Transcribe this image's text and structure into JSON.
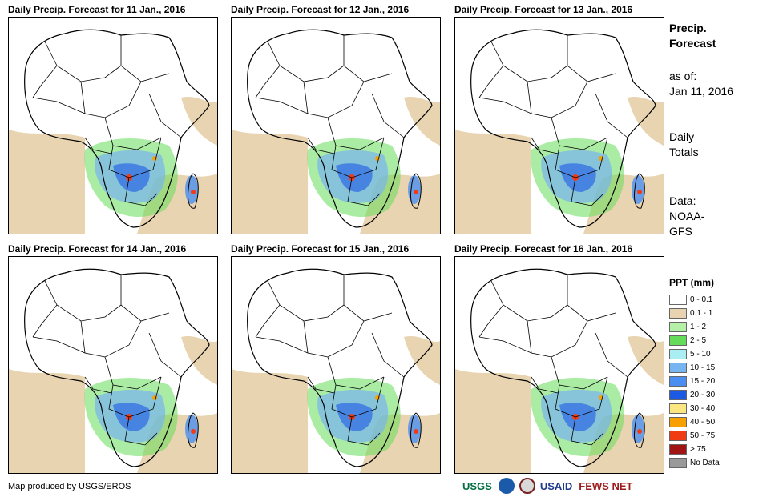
{
  "panels": [
    {
      "title": "Daily Precip. Forecast for 11 Jan., 2016"
    },
    {
      "title": "Daily Precip. Forecast for 12 Jan., 2016"
    },
    {
      "title": "Daily Precip. Forecast for 13 Jan., 2016"
    },
    {
      "title": "Daily Precip. Forecast for 14 Jan., 2016"
    },
    {
      "title": "Daily Precip. Forecast for 15 Jan., 2016"
    },
    {
      "title": "Daily Precip. Forecast for 16 Jan., 2016"
    }
  ],
  "side": {
    "title_line1": "Precip.",
    "title_line2": "Forecast",
    "asof_label": "as of:",
    "asof_date": "Jan 11, 2016",
    "totals_line1": "Daily",
    "totals_line2": "Totals",
    "data_line1": "Data:",
    "data_line2": "NOAA-",
    "data_line3": "GFS"
  },
  "legend": {
    "title": "PPT (mm)",
    "items": [
      {
        "label": "0 - 0.1",
        "color": "#ffffff"
      },
      {
        "label": "0.1 - 1",
        "color": "#e8d4b0"
      },
      {
        "label": "1 - 2",
        "color": "#b4f0a8"
      },
      {
        "label": "2 - 5",
        "color": "#64dc5a"
      },
      {
        "label": "5 - 10",
        "color": "#aaeef4"
      },
      {
        "label": "10 - 15",
        "color": "#78b4f0"
      },
      {
        "label": "15 - 20",
        "color": "#4a8ef0"
      },
      {
        "label": "20 - 30",
        "color": "#1c5ae6"
      },
      {
        "label": "30 - 40",
        "color": "#fce682"
      },
      {
        "label": "40 - 50",
        "color": "#f8a000"
      },
      {
        "label": "50 - 75",
        "color": "#f03c14"
      },
      {
        "label": "> 75",
        "color": "#a01414"
      },
      {
        "label": "No Data",
        "color": "#9a9a9a"
      }
    ]
  },
  "credit": "Map produced by USGS/EROS",
  "logos": {
    "usgs": "USGS",
    "usaid": "USAID",
    "fewsnet": "FEWS NET"
  }
}
